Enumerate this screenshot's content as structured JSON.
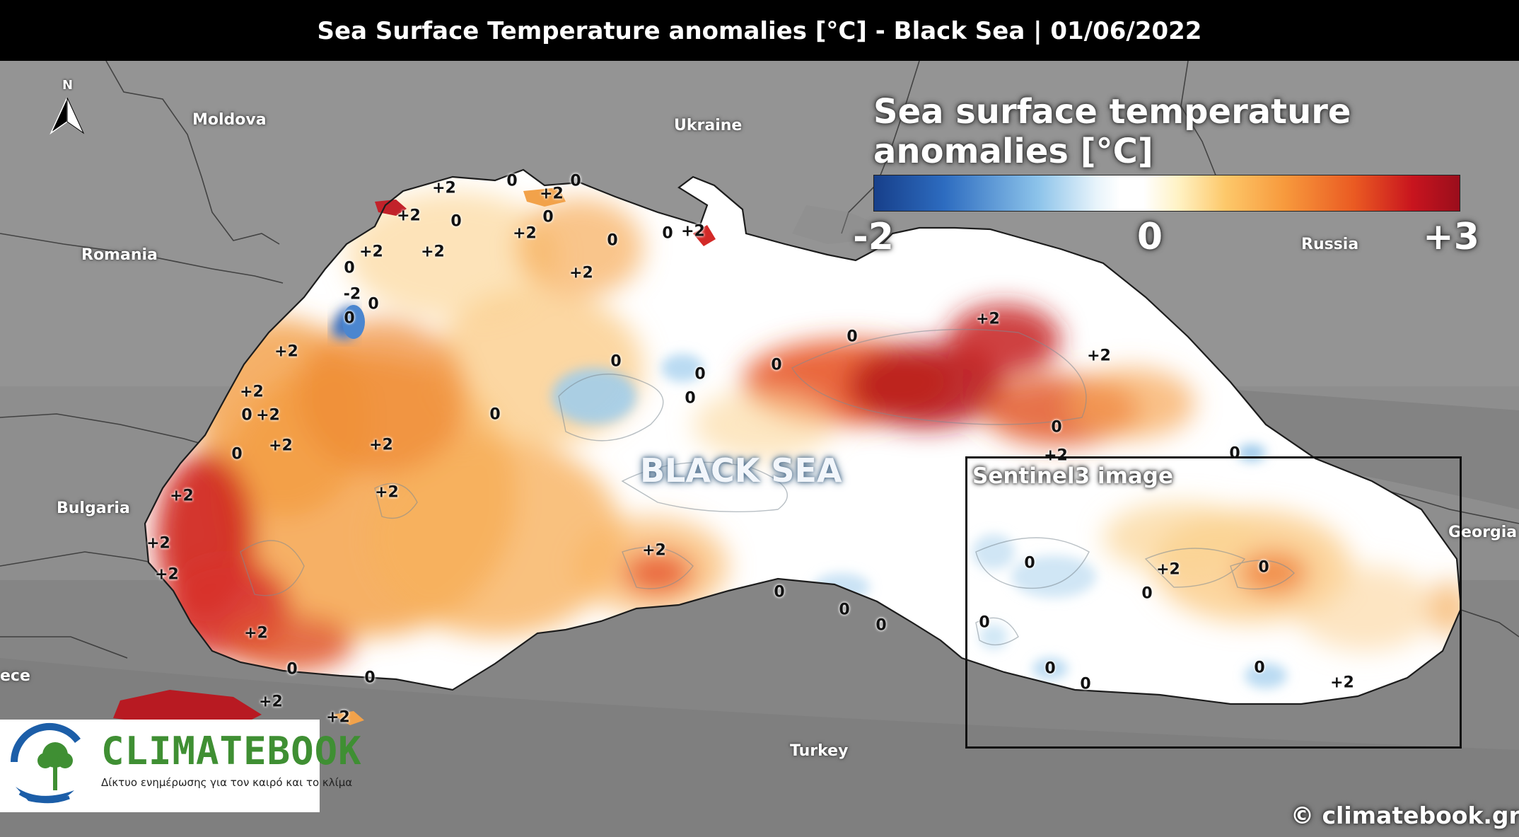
{
  "header": {
    "title": "Sea Surface Temperature anomalies [°C] - Black Sea | 01/06/2022"
  },
  "legend": {
    "title_line1": "Sea surface temperature",
    "title_line2": "anomalies [°C]",
    "tick_min": "-2",
    "tick_mid": "0",
    "tick_max": "+3",
    "colors": {
      "cold": "#173f8a",
      "neutral": "#ffffff",
      "warm": "#f79a3d",
      "hot": "#9a0e1c"
    }
  },
  "map": {
    "sea_name": "BLACK SEA",
    "north_letter": "N",
    "countries": {
      "moldova": "Moldova",
      "ukraine": "Ukraine",
      "romania": "Romania",
      "russia": "Russia",
      "bulgaria": "Bulgaria",
      "georgia": "Georgia",
      "turkey": "Turkey",
      "greece_partial": "ece"
    },
    "inset_label": "Sentinel3 image",
    "contour_labels": [
      {
        "id": "c1",
        "text": "+2"
      },
      {
        "id": "c2",
        "text": "0"
      },
      {
        "id": "c3",
        "text": "0"
      },
      {
        "id": "c4",
        "text": "+2"
      },
      {
        "id": "c5",
        "text": "+2"
      },
      {
        "id": "c6",
        "text": "0"
      },
      {
        "id": "c7",
        "text": "+2"
      },
      {
        "id": "c8",
        "text": "0"
      },
      {
        "id": "c9",
        "text": "0"
      },
      {
        "id": "c10",
        "text": "+2"
      },
      {
        "id": "c11",
        "text": "0"
      },
      {
        "id": "c12",
        "text": "+2"
      },
      {
        "id": "c13",
        "text": "+2"
      },
      {
        "id": "c14",
        "text": "0"
      },
      {
        "id": "c15",
        "text": "-2"
      },
      {
        "id": "c16",
        "text": "0"
      },
      {
        "id": "c17",
        "text": "0"
      },
      {
        "id": "c18",
        "text": "+2"
      },
      {
        "id": "c19",
        "text": "+2"
      },
      {
        "id": "c20",
        "text": "0"
      },
      {
        "id": "c21",
        "text": "+2"
      },
      {
        "id": "c22",
        "text": "+2"
      },
      {
        "id": "c23",
        "text": "0"
      },
      {
        "id": "c24",
        "text": "+2"
      },
      {
        "id": "c25",
        "text": "+2"
      },
      {
        "id": "c26",
        "text": "+2"
      },
      {
        "id": "c27",
        "text": "+2"
      },
      {
        "id": "c28",
        "text": "+2"
      },
      {
        "id": "c29",
        "text": "+2"
      },
      {
        "id": "c30",
        "text": "+2"
      },
      {
        "id": "c31",
        "text": "0"
      },
      {
        "id": "c32",
        "text": "0"
      },
      {
        "id": "c33",
        "text": "+2"
      },
      {
        "id": "c34",
        "text": "+2"
      },
      {
        "id": "c35",
        "text": "0"
      },
      {
        "id": "c36",
        "text": "0"
      },
      {
        "id": "c37",
        "text": "0"
      },
      {
        "id": "c38",
        "text": "0"
      },
      {
        "id": "c39",
        "text": "0"
      },
      {
        "id": "c40",
        "text": "+2"
      },
      {
        "id": "c41",
        "text": "+2"
      },
      {
        "id": "c42",
        "text": "+2"
      },
      {
        "id": "c43",
        "text": "0"
      },
      {
        "id": "c44",
        "text": "0"
      },
      {
        "id": "c45",
        "text": "0"
      },
      {
        "id": "c46",
        "text": "0"
      },
      {
        "id": "c47",
        "text": "0"
      },
      {
        "id": "c48",
        "text": "0"
      },
      {
        "id": "c49",
        "text": "+2"
      },
      {
        "id": "c50",
        "text": "+2"
      },
      {
        "id": "c51",
        "text": "0"
      },
      {
        "id": "c52",
        "text": "0"
      },
      {
        "id": "c53",
        "text": "0"
      },
      {
        "id": "c54",
        "text": "0"
      },
      {
        "id": "c55",
        "text": "0"
      },
      {
        "id": "c56",
        "text": "0"
      },
      {
        "id": "c57",
        "text": "0"
      },
      {
        "id": "c58",
        "text": "+2"
      }
    ]
  },
  "branding": {
    "logo_name": "CLIMATEBOOK",
    "logo_tagline": "Δίκτυο ενημέρωσης για  τον καιρό και το κλίμα",
    "copyright": "© climatebook.gr"
  }
}
